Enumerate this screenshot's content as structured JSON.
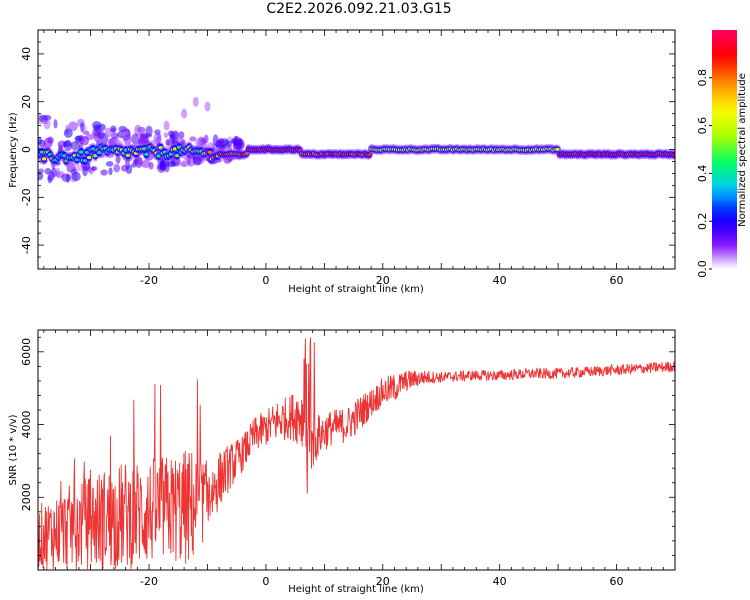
{
  "title": "C2E2.2026.092.21.03.G15",
  "chart_data": [
    {
      "type": "heatmap",
      "xlabel": "Height of straight line (km)",
      "ylabel": "Frequency (Hz)",
      "xlim": [
        -39,
        70
      ],
      "ylim": [
        -50,
        50
      ],
      "xticks": [
        -20,
        0,
        20,
        40,
        60
      ],
      "yticks": [
        -40,
        -20,
        0,
        20,
        40
      ],
      "grid": false,
      "colorbar": {
        "label": "Normalized spectral amplitude",
        "range": [
          0,
          1
        ],
        "ticks": [
          0.0,
          0.2,
          0.4,
          0.6,
          0.8
        ],
        "colors": [
          "#ffffff",
          "#7a00ff",
          "#0000ff",
          "#00c8ff",
          "#00ff66",
          "#aaff00",
          "#ffff00",
          "#ff8800",
          "#ff0000",
          "#ff0066"
        ]
      },
      "ridge": {
        "description_segments": [
          {
            "x": [
              -39,
              -30
            ],
            "freq": -3,
            "amplitude": 0.45
          },
          {
            "x": [
              -30,
              -10
            ],
            "freq": -1,
            "amplitude": 0.5
          },
          {
            "x": [
              -10,
              -3
            ],
            "freq": -2,
            "amplitude": 0.85
          },
          {
            "x": [
              -3,
              6
            ],
            "freq": 0,
            "amplitude": 0.95
          },
          {
            "x": [
              6,
              18
            ],
            "freq": -2,
            "amplitude": 0.85
          },
          {
            "x": [
              18,
              50
            ],
            "freq": 0,
            "amplitude": 0.6
          },
          {
            "x": [
              50,
              70
            ],
            "freq": -2,
            "amplitude": 0.9
          }
        ]
      }
    },
    {
      "type": "line",
      "xlabel": "Height of straight line (km)",
      "ylabel": "SNR (10 * v/v)",
      "xlim": [
        -39,
        70
      ],
      "ylim": [
        0,
        6600
      ],
      "xticks": [
        -20,
        0,
        20,
        40,
        60
      ],
      "yticks": [
        2000,
        4000,
        6000
      ],
      "grid": false,
      "series": [
        {
          "color": "#ee3333",
          "envelope_x": [
            -39,
            -33,
            -28,
            -24,
            -20,
            -16,
            -13,
            -10,
            -7,
            -4,
            -2,
            0,
            2,
            4,
            6,
            7.5,
            9,
            11,
            14,
            16,
            18,
            20,
            22,
            24,
            27,
            30,
            35,
            40,
            45,
            50,
            55,
            60,
            65,
            70
          ],
          "envelope_mean": [
            900,
            1200,
            1400,
            1500,
            1600,
            1700,
            1700,
            2000,
            2700,
            3200,
            3700,
            3900,
            4100,
            4200,
            4300,
            3500,
            3700,
            3900,
            4000,
            4300,
            4600,
            4900,
            5000,
            5200,
            5300,
            5300,
            5350,
            5350,
            5400,
            5400,
            5450,
            5500,
            5550,
            5600
          ],
          "envelope_amplitude": [
            900,
            1200,
            1400,
            1500,
            1500,
            1500,
            1700,
            1000,
            700,
            500,
            500,
            500,
            600,
            600,
            900,
            1000,
            600,
            500,
            500,
            500,
            400,
            400,
            400,
            300,
            200,
            150,
            150,
            150,
            150,
            150,
            150,
            150,
            150,
            150
          ]
        }
      ]
    }
  ]
}
